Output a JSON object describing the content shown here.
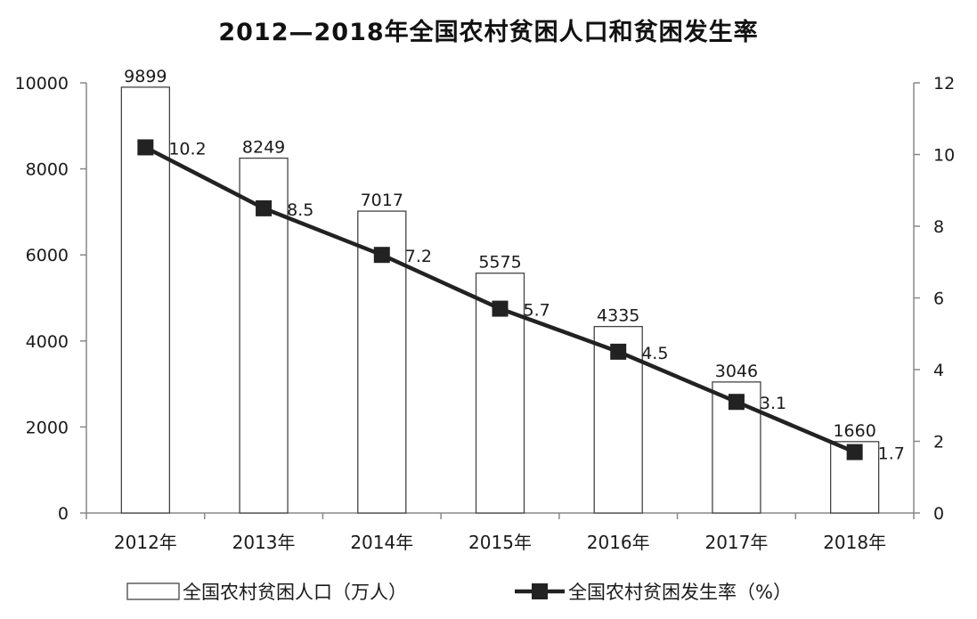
{
  "chart_data": {
    "type": "bar+line",
    "title": "2012—2018年全国农村贫困人口和贫困发生率",
    "categories": [
      "2012年",
      "2013年",
      "2014年",
      "2015年",
      "2016年",
      "2017年",
      "2018年"
    ],
    "series": [
      {
        "name": "全国农村贫困人口（万人）",
        "type": "bar",
        "axis": "left",
        "values": [
          9899,
          8249,
          7017,
          5575,
          4335,
          3046,
          1660
        ],
        "color": "#ffffff",
        "border": "#444444"
      },
      {
        "name": "全国农村贫困发生率（%）",
        "type": "line",
        "axis": "right",
        "values": [
          10.2,
          8.5,
          7.2,
          5.7,
          4.5,
          3.1,
          1.7
        ],
        "color": "#222222"
      }
    ],
    "y_left": {
      "min": 0,
      "max": 10000,
      "ticks": [
        0,
        2000,
        4000,
        6000,
        8000,
        10000
      ]
    },
    "y_right": {
      "min": 0,
      "max": 12,
      "ticks": [
        0,
        2,
        4,
        6,
        8,
        10,
        12
      ]
    },
    "grid": false,
    "legend_position": "bottom"
  }
}
